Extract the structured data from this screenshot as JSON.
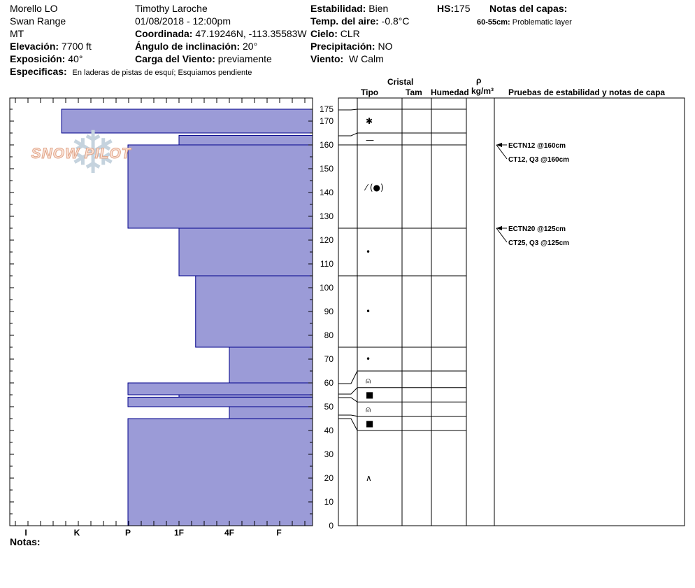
{
  "header": {
    "location_name": "Morello LO",
    "range": "Swan Range",
    "state": "MT",
    "elevation_label": "Elevación:",
    "elevation_value": "7700 ft",
    "aspect_label": "Exposición:",
    "aspect_value": "40°",
    "specifics_label": "Especificas:",
    "specifics_value": "En laderas de pistas de esquí; Esquiamos pendiente",
    "observer": "Timothy  Laroche",
    "datetime": "01/08/2018 - 12:00pm",
    "coord_label": "Coordinada:",
    "coord_value": "47.19246N, -113.35583W",
    "incline_label": "Ángulo de inclinación:",
    "incline_value": "20°",
    "wind_load_label": "Carga del Viento:",
    "wind_load_value": "previamente",
    "stability_label": "Estabilidad:",
    "stability_value": "Bien",
    "air_temp_label": "Temp. del aire:",
    "air_temp_value": "-0.8°C",
    "sky_label": "Cielo:",
    "sky_value": "CLR",
    "precip_label": "Precipitación:",
    "precip_value": "NO",
    "wind_label": "Viento:",
    "wind_value": "W Calm",
    "hs_label": "HS:",
    "hs_value": "175",
    "layer_notes_title": "Notas del capas:",
    "layer_note_range": "60-55cm:",
    "layer_note_text": "Problematic layer"
  },
  "table_headers": {
    "crystal": "Cristal",
    "type": "Tipo",
    "size": "Tam",
    "moisture": "Humedad",
    "rho": "ρ",
    "density_unit": "kg/m³",
    "tests": "Pruebas de estabilidad y notas de capa"
  },
  "logo_text": "SNOW PILOT",
  "notes_label": "Notas:",
  "colors": {
    "bar_fill": "#9b9bd7",
    "bar_stroke": "#00008b",
    "logo_text": "#e0a58a"
  },
  "chart_data": {
    "type": "bar",
    "orientation": "horizontal",
    "x_categories": [
      "I",
      "K",
      "P",
      "1F",
      "4F",
      "F"
    ],
    "ylim": [
      0,
      175
    ],
    "y_ticks": [
      0,
      10,
      20,
      30,
      40,
      50,
      60,
      70,
      80,
      90,
      100,
      110,
      120,
      130,
      140,
      150,
      160,
      170,
      175
    ],
    "layers": [
      {
        "top": 175,
        "bottom": 165,
        "hardness": 0.7
      },
      {
        "top": 164,
        "bottom": 160,
        "hardness": 3.0
      },
      {
        "top": 160,
        "bottom": 125,
        "hardness": 2.0
      },
      {
        "top": 125,
        "bottom": 105,
        "hardness": 3.0
      },
      {
        "top": 105,
        "bottom": 75,
        "hardness": 3.33
      },
      {
        "top": 75,
        "bottom": 60,
        "hardness": 4.0
      },
      {
        "top": 60,
        "bottom": 55,
        "hardness": 2.0
      },
      {
        "top": 55,
        "bottom": 54,
        "hardness": 3.0
      },
      {
        "top": 54,
        "bottom": 50,
        "hardness": 2.0
      },
      {
        "top": 50,
        "bottom": 45,
        "hardness": 4.0
      },
      {
        "top": 45,
        "bottom": 0,
        "hardness": 2.0
      }
    ],
    "layer_boundaries": [
      175,
      165,
      160,
      125,
      105,
      75,
      65,
      58,
      52,
      46,
      40
    ],
    "grain_symbols": [
      {
        "depth": 170,
        "symbol": "✱"
      },
      {
        "depth": 162,
        "symbol": "—"
      },
      {
        "depth": 142,
        "symbol": "⁄ (●)"
      },
      {
        "depth": 115,
        "symbol": "•"
      },
      {
        "depth": 90,
        "symbol": "•"
      },
      {
        "depth": 70,
        "symbol": "•"
      },
      {
        "depth": 61,
        "symbol": "⍝"
      },
      {
        "depth": 55,
        "symbol": "■"
      },
      {
        "depth": 49,
        "symbol": "⍝"
      },
      {
        "depth": 43,
        "symbol": "■"
      },
      {
        "depth": 20,
        "symbol": "∧"
      }
    ],
    "stability_tests": [
      {
        "depth": 160,
        "label": "ECTN12 @160cm"
      },
      {
        "depth": 160,
        "label": "CT12, Q3 @160cm"
      },
      {
        "depth": 125,
        "label": "ECTN20 @125cm"
      },
      {
        "depth": 125,
        "label": "CT25, Q3 @125cm"
      }
    ]
  }
}
